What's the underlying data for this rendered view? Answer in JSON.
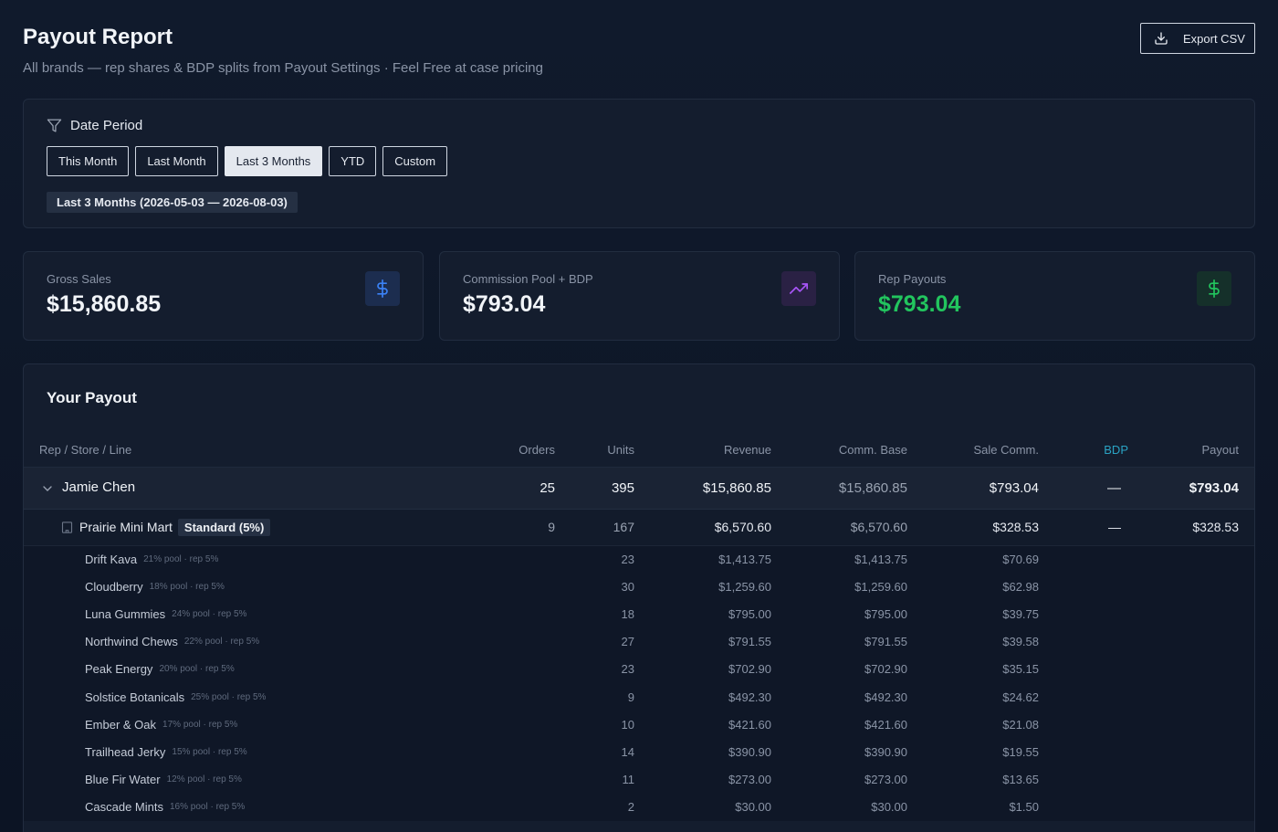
{
  "header": {
    "title": "Payout Report",
    "subtitle": "All brands — rep shares & BDP splits from Payout Settings · Feel Free at case pricing",
    "export_label": "Export CSV"
  },
  "date_period": {
    "label": "Date Period",
    "options": [
      "This Month",
      "Last Month",
      "Last 3 Months",
      "YTD",
      "Custom"
    ],
    "selected": "Last 3 Months",
    "range_label": "Last 3 Months (2026-05-03 — 2026-08-03)"
  },
  "stats": [
    {
      "label": "Gross Sales",
      "value": "$15,860.85",
      "icon": "dollar-icon",
      "accent": "#3b82f6"
    },
    {
      "label": "Commission Pool + BDP",
      "value": "$793.04",
      "icon": "trending-up-icon",
      "accent": "#a855f7"
    },
    {
      "label": "Rep Payouts",
      "value": "$793.04",
      "icon": "dollar-icon",
      "accent": "#22c55e"
    }
  ],
  "payout": {
    "title": "Your Payout",
    "columns": [
      "Rep / Store / Line",
      "Orders",
      "Units",
      "Revenue",
      "Comm. Base",
      "Sale Comm.",
      "BDP",
      "Payout"
    ],
    "rep": {
      "name": "Jamie Chen",
      "orders": "25",
      "units": "395",
      "revenue": "$15,860.85",
      "comm_base": "$15,860.85",
      "sale_comm": "$793.04",
      "bdp": "—",
      "payout": "$793.04"
    },
    "store": {
      "name": "Prairie Mini Mart",
      "tag": "Standard (5%)",
      "orders": "9",
      "units": "167",
      "revenue": "$6,570.60",
      "comm_base": "$6,570.60",
      "sale_comm": "$328.53",
      "bdp": "—",
      "payout": "$328.53"
    },
    "lines": [
      {
        "name": "Drift Kava",
        "pool": "21% pool · rep 5%",
        "units": "23",
        "revenue": "$1,413.75",
        "comm_base": "$1,413.75",
        "sale_comm": "$70.69"
      },
      {
        "name": "Cloudberry",
        "pool": "18% pool · rep 5%",
        "units": "30",
        "revenue": "$1,259.60",
        "comm_base": "$1,259.60",
        "sale_comm": "$62.98"
      },
      {
        "name": "Luna Gummies",
        "pool": "24% pool · rep 5%",
        "units": "18",
        "revenue": "$795.00",
        "comm_base": "$795.00",
        "sale_comm": "$39.75"
      },
      {
        "name": "Northwind Chews",
        "pool": "22% pool · rep 5%",
        "units": "27",
        "revenue": "$791.55",
        "comm_base": "$791.55",
        "sale_comm": "$39.58"
      },
      {
        "name": "Peak Energy",
        "pool": "20% pool · rep 5%",
        "units": "23",
        "revenue": "$702.90",
        "comm_base": "$702.90",
        "sale_comm": "$35.15"
      },
      {
        "name": "Solstice Botanicals",
        "pool": "25% pool · rep 5%",
        "units": "9",
        "revenue": "$492.30",
        "comm_base": "$492.30",
        "sale_comm": "$24.62"
      },
      {
        "name": "Ember & Oak",
        "pool": "17% pool · rep 5%",
        "units": "10",
        "revenue": "$421.60",
        "comm_base": "$421.60",
        "sale_comm": "$21.08"
      },
      {
        "name": "Trailhead Jerky",
        "pool": "15% pool · rep 5%",
        "units": "14",
        "revenue": "$390.90",
        "comm_base": "$390.90",
        "sale_comm": "$19.55"
      },
      {
        "name": "Blue Fir Water",
        "pool": "12% pool · rep 5%",
        "units": "11",
        "revenue": "$273.00",
        "comm_base": "$273.00",
        "sale_comm": "$13.65"
      },
      {
        "name": "Cascade Mints",
        "pool": "16% pool · rep 5%",
        "units": "2",
        "revenue": "$30.00",
        "comm_base": "$30.00",
        "sale_comm": "$1.50"
      }
    ]
  }
}
